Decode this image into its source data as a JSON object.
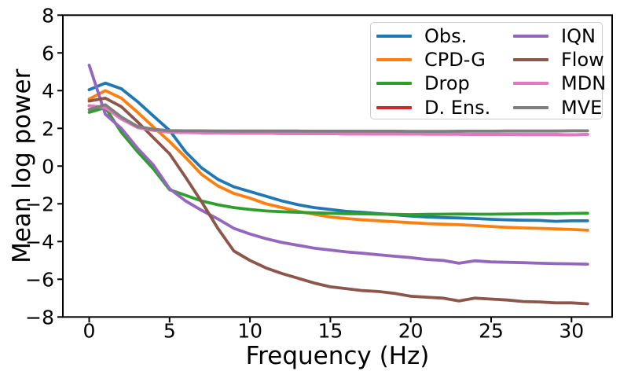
{
  "chart_data": {
    "type": "line",
    "title": "",
    "xlabel": "Frequency (Hz)",
    "ylabel": "Mean log power",
    "xlim": [
      -1.69,
      32.5
    ],
    "ylim": [
      -8,
      8
    ],
    "grid": false,
    "background": "#ffffff",
    "axis_color": "#000000",
    "xticks": [
      0,
      5,
      10,
      15,
      20,
      25,
      30
    ],
    "xtick_labels": [
      "0",
      "5",
      "10",
      "15",
      "20",
      "25",
      "30"
    ],
    "yticks": [
      -8,
      -6,
      -4,
      -2,
      0,
      2,
      4,
      6,
      8
    ],
    "ytick_labels": [
      "−8",
      "−6",
      "−4",
      "−2",
      "0",
      "2",
      "4",
      "6",
      "8"
    ],
    "legend": {
      "location": "upper right",
      "columns": 2,
      "border_color": "#cccccc",
      "column_order": [
        [
          "Obs.",
          "CPD-G",
          "Drop",
          "D. Ens."
        ],
        [
          "IQN",
          "Flow",
          "MDN",
          "MVE"
        ]
      ]
    },
    "x": [
      0,
      1,
      2,
      3,
      4,
      5,
      6,
      7,
      8,
      9,
      10,
      11,
      12,
      13,
      14,
      15,
      16,
      17,
      18,
      19,
      20,
      21,
      22,
      23,
      24,
      25,
      26,
      27,
      28,
      29,
      30,
      31
    ],
    "series": [
      {
        "name": "Obs.",
        "color": "#1f77b4",
        "values": [
          4.05,
          4.4,
          4.1,
          3.42,
          2.65,
          1.89,
          0.75,
          -0.1,
          -0.7,
          -1.1,
          -1.35,
          -1.6,
          -1.85,
          -2.05,
          -2.2,
          -2.3,
          -2.4,
          -2.45,
          -2.52,
          -2.58,
          -2.65,
          -2.7,
          -2.73,
          -2.75,
          -2.78,
          -2.82,
          -2.85,
          -2.87,
          -2.88,
          -2.93,
          -2.9,
          -2.9
        ]
      },
      {
        "name": "CPD-G",
        "color": "#ff7f0e",
        "values": [
          3.55,
          4.0,
          3.6,
          2.86,
          2.07,
          1.3,
          0.45,
          -0.45,
          -1.05,
          -1.45,
          -1.7,
          -2.0,
          -2.2,
          -2.4,
          -2.55,
          -2.7,
          -2.78,
          -2.85,
          -2.9,
          -2.95,
          -3.0,
          -3.05,
          -3.08,
          -3.11,
          -3.15,
          -3.2,
          -3.25,
          -3.28,
          -3.3,
          -3.33,
          -3.36,
          -3.4
        ]
      },
      {
        "name": "Drop",
        "color": "#2ca02c",
        "values": [
          2.85,
          3.1,
          1.79,
          0.77,
          -0.15,
          -1.25,
          -1.55,
          -1.85,
          -2.05,
          -2.2,
          -2.3,
          -2.38,
          -2.42,
          -2.45,
          -2.48,
          -2.5,
          -2.52,
          -2.53,
          -2.55,
          -2.56,
          -2.57,
          -2.56,
          -2.55,
          -2.54,
          -2.55,
          -2.55,
          -2.54,
          -2.53,
          -2.52,
          -2.52,
          -2.51,
          -2.5
        ]
      },
      {
        "name": "D. Ens.",
        "color": "#d62728",
        "values": [
          3.2,
          3.1,
          2.5,
          2.05,
          1.9,
          1.8,
          1.78,
          1.77,
          1.76,
          1.75,
          1.74,
          1.74,
          1.73,
          1.73,
          1.72,
          1.72,
          1.71,
          1.71,
          1.7,
          1.7,
          1.7,
          1.69,
          1.69,
          1.69,
          1.68,
          1.68,
          1.68,
          1.67,
          1.67,
          1.67,
          1.66,
          1.68
        ]
      },
      {
        "name": "IQN",
        "color": "#9467bd",
        "values": [
          5.35,
          2.75,
          2.0,
          0.95,
          0.05,
          -1.2,
          -1.85,
          -2.35,
          -2.8,
          -3.3,
          -3.6,
          -3.85,
          -4.05,
          -4.2,
          -4.35,
          -4.45,
          -4.55,
          -4.62,
          -4.7,
          -4.78,
          -4.85,
          -4.95,
          -5.0,
          -5.15,
          -5.02,
          -5.08,
          -5.1,
          -5.12,
          -5.15,
          -5.17,
          -5.18,
          -5.2
        ]
      },
      {
        "name": "Flow",
        "color": "#8c564b",
        "values": [
          3.45,
          3.6,
          3.15,
          2.35,
          1.5,
          0.65,
          -0.6,
          -1.9,
          -3.3,
          -4.5,
          -5.0,
          -5.4,
          -5.7,
          -5.95,
          -6.2,
          -6.4,
          -6.5,
          -6.6,
          -6.65,
          -6.75,
          -6.9,
          -6.95,
          -7.0,
          -7.15,
          -7.0,
          -7.05,
          -7.1,
          -7.18,
          -7.2,
          -7.25,
          -7.25,
          -7.3
        ]
      },
      {
        "name": "MDN",
        "color": "#e377c2",
        "values": [
          3.2,
          3.1,
          2.5,
          2.05,
          1.9,
          1.8,
          1.78,
          1.77,
          1.76,
          1.75,
          1.74,
          1.74,
          1.73,
          1.73,
          1.72,
          1.72,
          1.71,
          1.71,
          1.7,
          1.7,
          1.7,
          1.69,
          1.69,
          1.69,
          1.68,
          1.68,
          1.68,
          1.67,
          1.67,
          1.67,
          1.66,
          1.68
        ]
      },
      {
        "name": "MVE",
        "color": "#7f7f7f",
        "values": [
          3.0,
          3.25,
          2.6,
          2.1,
          1.95,
          1.88,
          1.87,
          1.87,
          1.86,
          1.86,
          1.86,
          1.86,
          1.86,
          1.86,
          1.85,
          1.85,
          1.85,
          1.85,
          1.85,
          1.85,
          1.84,
          1.84,
          1.84,
          1.85,
          1.85,
          1.85,
          1.86,
          1.86,
          1.86,
          1.86,
          1.87,
          1.87
        ]
      }
    ]
  }
}
